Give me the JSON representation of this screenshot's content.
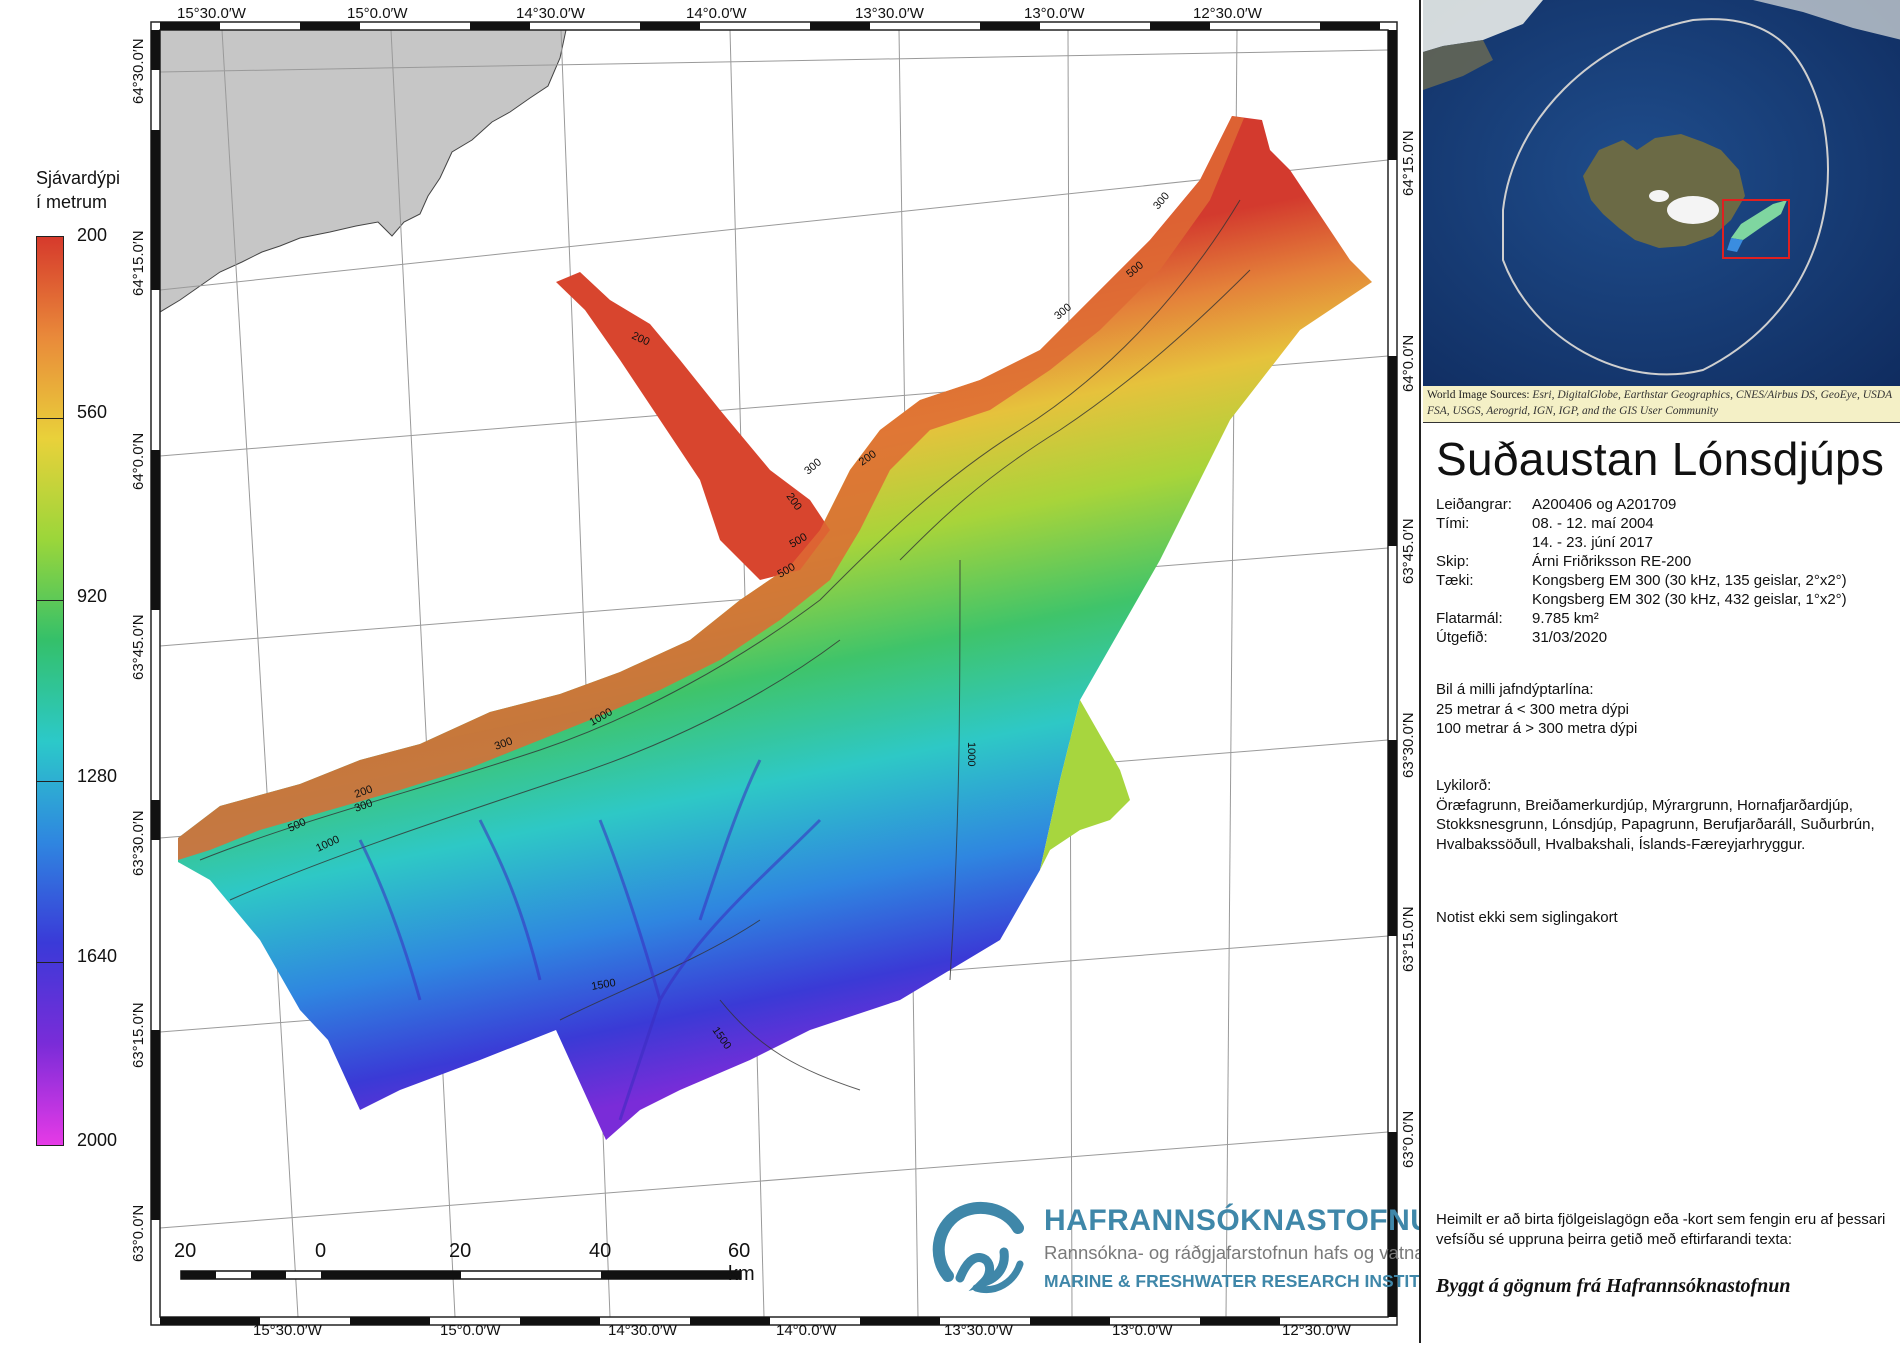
{
  "map": {
    "top_lon_labels": [
      "15°30.0′W",
      "15°0.0′W",
      "14°30.0′W",
      "14°0.0′W",
      "13°30.0′W",
      "13°0.0′W",
      "12°30.0′W"
    ],
    "bottom_lon_labels": [
      "15°30.0′W",
      "15°0.0′W",
      "14°30.0′W",
      "14°0.0′W",
      "13°30.0′W",
      "13°0.0′W",
      "12°30.0′W"
    ],
    "left_lat_labels": [
      "64°30.0′N",
      "64°15.0′N",
      "64°0.0′N",
      "63°45.0′N",
      "63°30.0′N",
      "63°15.0′N",
      "63°0.0′N"
    ],
    "right_lat_labels": [
      "64°15.0′N",
      "64°0.0′N",
      "63°45.0′N",
      "63°30.0′N",
      "63°15.0′N",
      "63°0.0′N"
    ],
    "contour_labels": [
      "200",
      "300",
      "500",
      "200",
      "300",
      "500",
      "200",
      "300",
      "500",
      "1000",
      "300",
      "200",
      "500",
      "1000",
      "1000",
      "1500",
      "1500",
      "300"
    ]
  },
  "legend": {
    "title_line1": "Sjávardýpi",
    "title_line2": "í metrum",
    "labels": [
      "200",
      "560",
      "920",
      "1280",
      "1640",
      "2000"
    ],
    "colors": [
      "#d63a2c",
      "#e98a3a",
      "#e9d13a",
      "#9bd63a",
      "#34c06a",
      "#2cc9c9",
      "#2f86e0",
      "#3a3ad8",
      "#7a2cd8",
      "#e63ae6"
    ]
  },
  "scalebar": {
    "labels": [
      "20",
      "0",
      "20",
      "40",
      "60 km"
    ]
  },
  "logo": {
    "name": "HAFRANNSÓKNASTOFNUN",
    "subtitle": "Rannsókna- og ráðgjafarstofnun hafs og vatna",
    "english": "MARINE & FRESHWATER RESEARCH INSTITUTE"
  },
  "inset": {
    "credit_label": "World Image Sources:",
    "credit_text": "Esri, DigitalGlobe, Earthstar Geographics, CNES/Airbus DS, GeoEye, USDA FSA, USGS, Aerogrid, IGN, IGP, and the GIS User Community"
  },
  "panel": {
    "title": "Suðaustan Lónsdjúps",
    "rows": [
      {
        "key": "Leiðangrar:",
        "value": "A200406 og A201709"
      },
      {
        "key": "Tími:",
        "value": "08. - 12. maí 2004"
      },
      {
        "key": "",
        "value": "14. - 23. júní 2017"
      },
      {
        "key": "Skip:",
        "value": "Árni Friðriksson RE-200"
      },
      {
        "key": "Tæki:",
        "value": "Kongsberg EM 300 (30 kHz, 135 geislar, 2°x2°)"
      },
      {
        "key": "",
        "value": "Kongsberg EM 302 (30 kHz, 432 geislar, 1°x2°)"
      },
      {
        "key": "Flatarmál:",
        "value": "9.785 km²"
      },
      {
        "key": "Útgefið:",
        "value": "31/03/2020"
      }
    ],
    "contour_heading": "Bil á milli jafndýptarlína:",
    "contour_line1": "25 metrar á < 300 metra dýpi",
    "contour_line2": "100 metrar á > 300 metra dýpi",
    "keywords_heading": "Lykilorð:",
    "keywords": "Öræfagrunn, Breiðamerkurdjúp, Mýrargrunn, Hornafjarðardjúp, Stokksnesgrunn, Lónsdjúp, Papagrunn, Berufjarðaráll, Suðurbrún, Hvalbakssöðull, Hvalbakshali, Íslands-Færeyjarhryggur.",
    "notice": "Notist ekki sem siglingakort",
    "license": "Heimilt er að birta fjölgeislagögn eða -kort sem fengin eru af þessari vefsíðu sé uppruna þeirra getið með eftirfarandi texta:",
    "credit": "Byggt á gögnum frá Hafrannsóknastofnun"
  }
}
